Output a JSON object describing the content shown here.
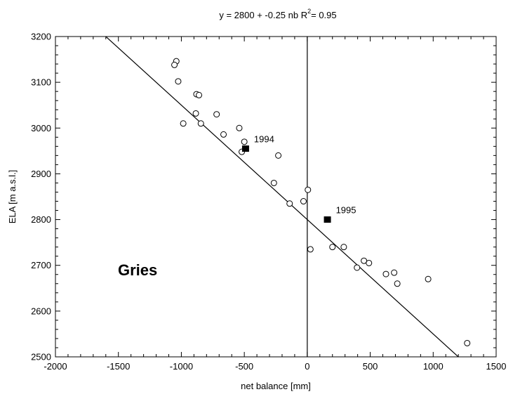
{
  "chart_data": {
    "type": "scatter",
    "title": {
      "prefix": "y = 2800 + -0.25 nb   R",
      "superscript": "2",
      "suffix": "= 0.95"
    },
    "xlabel": "net balance [mm]",
    "ylabel": "ELA [m a.s.l.]",
    "xlim": [
      -2000,
      1500
    ],
    "ylim": [
      2500,
      3200
    ],
    "xticks": [
      -2000,
      -1500,
      -1000,
      -500,
      0,
      500,
      1000,
      1500
    ],
    "yticks": [
      2500,
      2600,
      2700,
      2800,
      2900,
      3000,
      3100,
      3200
    ],
    "grid": false,
    "glacier_label": "Gries",
    "regression": {
      "intercept": 2800,
      "slope": -0.25
    },
    "reference_line_x": 0,
    "points": [
      {
        "x": -1040,
        "y": 3146
      },
      {
        "x": -1055,
        "y": 3138
      },
      {
        "x": -1025,
        "y": 3102
      },
      {
        "x": -880,
        "y": 3074
      },
      {
        "x": -860,
        "y": 3072
      },
      {
        "x": -885,
        "y": 3032
      },
      {
        "x": -720,
        "y": 3030
      },
      {
        "x": -985,
        "y": 3010
      },
      {
        "x": -845,
        "y": 3010
      },
      {
        "x": -540,
        "y": 3000
      },
      {
        "x": -665,
        "y": 2986
      },
      {
        "x": -500,
        "y": 2970
      },
      {
        "x": -520,
        "y": 2948
      },
      {
        "x": -230,
        "y": 2940
      },
      {
        "x": -265,
        "y": 2880
      },
      {
        "x": 5,
        "y": 2865
      },
      {
        "x": -30,
        "y": 2840
      },
      {
        "x": -140,
        "y": 2835
      },
      {
        "x": 25,
        "y": 2735
      },
      {
        "x": 200,
        "y": 2740
      },
      {
        "x": 290,
        "y": 2740
      },
      {
        "x": 450,
        "y": 2710
      },
      {
        "x": 490,
        "y": 2705
      },
      {
        "x": 395,
        "y": 2695
      },
      {
        "x": 690,
        "y": 2684
      },
      {
        "x": 625,
        "y": 2681
      },
      {
        "x": 960,
        "y": 2670
      },
      {
        "x": 715,
        "y": 2660
      },
      {
        "x": 1270,
        "y": 2530
      }
    ],
    "highlighted": [
      {
        "label": "1994",
        "x": -490,
        "y": 2955
      },
      {
        "label": "1995",
        "x": 160,
        "y": 2800
      }
    ]
  }
}
